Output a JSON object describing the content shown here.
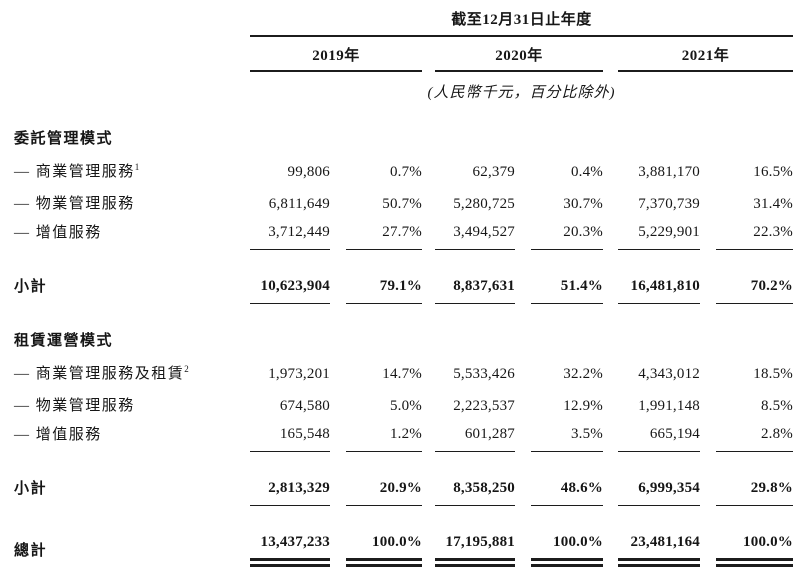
{
  "header": {
    "period_title": "截至12月31日止年度",
    "years": [
      "2019年",
      "2020年",
      "2021年"
    ],
    "unit_note": "(人民幣千元，百分比除外)"
  },
  "sections": [
    {
      "title": "委託管理模式",
      "rows": [
        {
          "label": "— 商業管理服務",
          "sup": "1",
          "values": [
            "99,806",
            "0.7%",
            "62,379",
            "0.4%",
            "3,881,170",
            "16.5%"
          ]
        },
        {
          "label": "— 物業管理服務",
          "sup": "",
          "values": [
            "6,811,649",
            "50.7%",
            "5,280,725",
            "30.7%",
            "7,370,739",
            "31.4%"
          ]
        },
        {
          "label": "— 增值服務",
          "sup": "",
          "values": [
            "3,712,449",
            "27.7%",
            "3,494,527",
            "20.3%",
            "5,229,901",
            "22.3%"
          ]
        }
      ],
      "subtotal": {
        "label": "小計",
        "values": [
          "10,623,904",
          "79.1%",
          "8,837,631",
          "51.4%",
          "16,481,810",
          "70.2%"
        ]
      }
    },
    {
      "title": "租賃運營模式",
      "rows": [
        {
          "label": "— 商業管理服務及租賃",
          "sup": "2",
          "values": [
            "1,973,201",
            "14.7%",
            "5,533,426",
            "32.2%",
            "4,343,012",
            "18.5%"
          ]
        },
        {
          "label": "— 物業管理服務",
          "sup": "",
          "values": [
            "674,580",
            "5.0%",
            "2,223,537",
            "12.9%",
            "1,991,148",
            "8.5%"
          ]
        },
        {
          "label": "— 增值服務",
          "sup": "",
          "values": [
            "165,548",
            "1.2%",
            "601,287",
            "3.5%",
            "665,194",
            "2.8%"
          ]
        }
      ],
      "subtotal": {
        "label": "小計",
        "values": [
          "2,813,329",
          "20.9%",
          "8,358,250",
          "48.6%",
          "6,999,354",
          "29.8%"
        ]
      }
    }
  ],
  "total": {
    "label": "總計",
    "values": [
      "13,437,233",
      "100.0%",
      "17,195,881",
      "100.0%",
      "23,481,164",
      "100.0%"
    ]
  },
  "colors": {
    "text": "#161616",
    "rule": "#1c1c1c",
    "background": "#ffffff"
  }
}
